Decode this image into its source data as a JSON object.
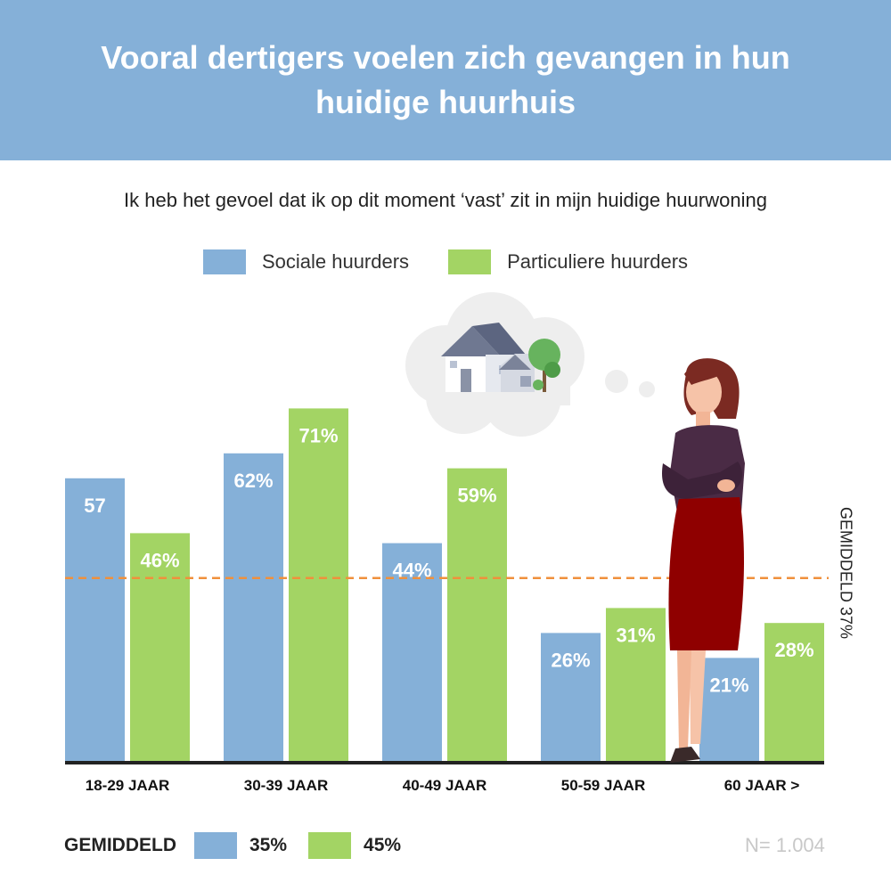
{
  "header": {
    "title": "Vooral dertigers voelen zich gevangen in hun huidige huurhuis"
  },
  "colors": {
    "header_bg": "#85b0d8",
    "social": "#85b0d8",
    "private": "#a3d464",
    "average_line": "#f0903c",
    "axis": "#222222"
  },
  "chart_data": {
    "type": "bar",
    "title": "Ik heb het gevoel dat ik op dit moment ‘vast’ zit in mijn huidige huurwoning",
    "categories": [
      "18-29 JAAR",
      "30-39 JAAR",
      "40-49 JAAR",
      "50-59 JAAR",
      "60 JAAR >"
    ],
    "series": [
      {
        "name": "Sociale huurders",
        "values": [
          57,
          62,
          44,
          26,
          21
        ],
        "labels": [
          "57",
          "62%",
          "44%",
          "26%",
          "21%"
        ]
      },
      {
        "name": "Particuliere huurders",
        "values": [
          46,
          71,
          59,
          31,
          28
        ],
        "labels": [
          "46%",
          "71%",
          "59%",
          "31%",
          "28%"
        ]
      }
    ],
    "ylim": [
      0,
      100
    ],
    "average_line": {
      "value": 37,
      "label": "GEMIDDELD 37%"
    },
    "legend_position": "top"
  },
  "footer": {
    "label": "GEMIDDELD",
    "social_value": "35%",
    "private_value": "45%",
    "note": "N= 1.004"
  },
  "illustration": {
    "thought_icon": "house-tree-icon",
    "figure": "worried-woman-illustration"
  }
}
